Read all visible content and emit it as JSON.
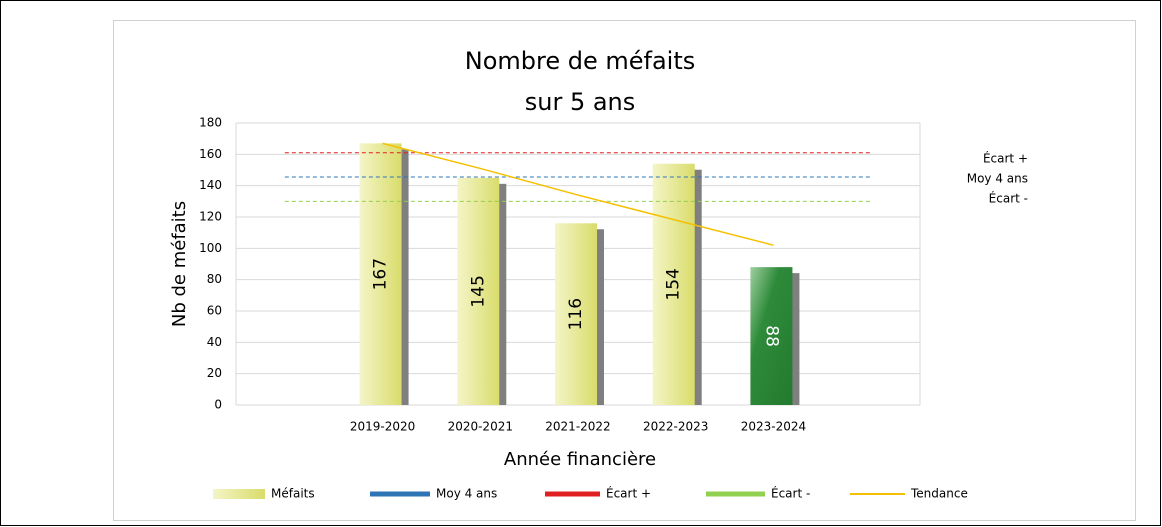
{
  "chart_data": {
    "type": "bar",
    "title": [
      "Nombre de méfaits",
      "sur 5 ans"
    ],
    "y_label": "Nb de méfaits",
    "x_label": "Année financière",
    "categories": [
      null,
      "2019-2020",
      "2020-2021",
      "2021-2022",
      "2022-2023",
      "2023-2024",
      null
    ],
    "ylim": [
      0,
      180
    ],
    "yticks": [
      0,
      20,
      40,
      60,
      80,
      100,
      120,
      140,
      160,
      180
    ],
    "grid": true,
    "series": [
      {
        "name": "Méfaits",
        "type": "bar",
        "color": "#e2e48a",
        "point_colors": [
          null,
          "#e2e48a",
          "#e2e48a",
          "#e2e48a",
          "#e2e48a",
          "#2e8b3a",
          null
        ],
        "values": [
          null,
          167,
          145,
          116,
          154,
          88,
          null
        ]
      },
      {
        "name": "Moy 4 ans",
        "type": "line",
        "dashed": true,
        "color": "#2e75b6",
        "values": [
          145.5,
          145.5,
          145.5,
          145.5,
          145.5,
          145.5,
          145.5
        ]
      },
      {
        "name": "Écart +",
        "type": "line",
        "dashed": true,
        "color": "#e02020",
        "values": [
          161,
          161,
          161,
          161,
          161,
          161,
          161
        ]
      },
      {
        "name": "Écart -",
        "type": "line",
        "dashed": true,
        "color": "#92d050",
        "values": [
          130,
          130,
          130,
          130,
          130,
          130,
          130
        ]
      },
      {
        "name": "Tendance",
        "type": "line",
        "dashed": false,
        "color": "#f5c000",
        "values": [
          null,
          167,
          151,
          134,
          118,
          102,
          null
        ]
      }
    ],
    "right_labels": [
      "Écart +",
      "Moy 4 ans",
      "Écart -"
    ]
  }
}
